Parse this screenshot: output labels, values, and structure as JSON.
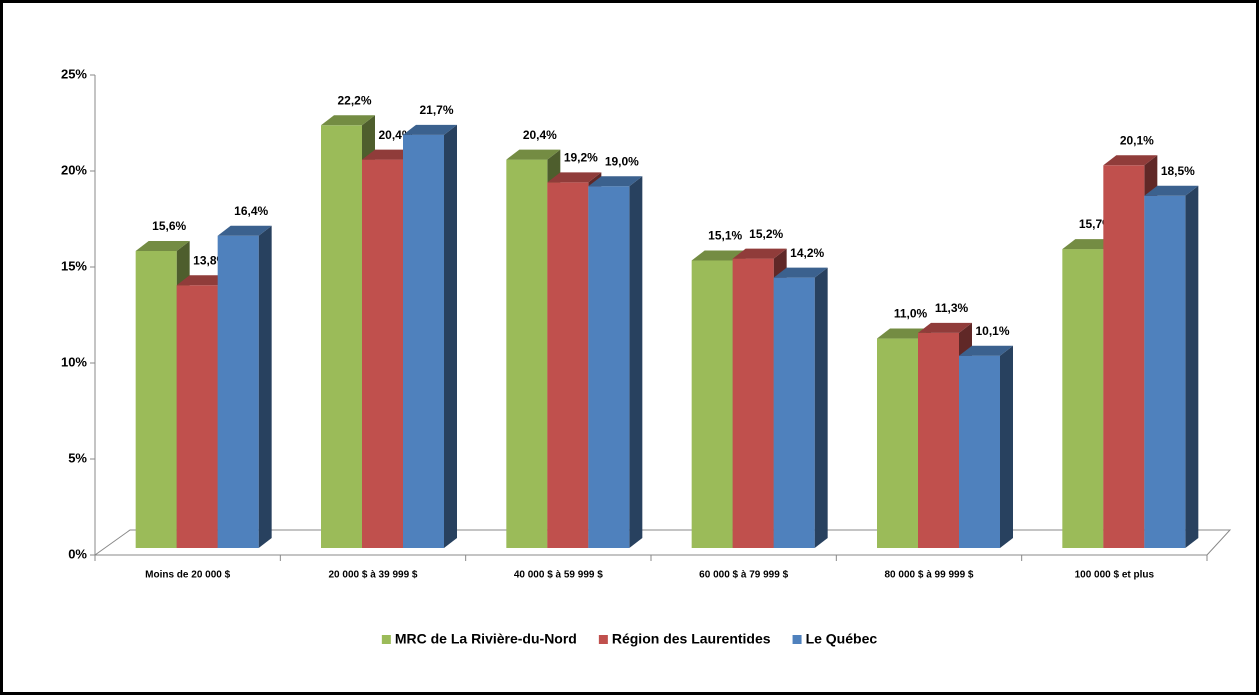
{
  "chart_data": {
    "type": "bar3d",
    "categories": [
      "Moins de 20 000 $",
      "20 000 $ à 39 999 $",
      "40 000 $ à 59 999 $",
      "60 000 $ à 79 999 $",
      "80 000 $ à 99 999 $",
      "100 000 $ et plus"
    ],
    "series": [
      {
        "name": "MRC de La Rivière-du-Nord",
        "color": "#9bbb59",
        "values": [
          15.6,
          22.2,
          20.4,
          15.1,
          11.0,
          15.7
        ],
        "value_labels": [
          "15,6%",
          "22,2%",
          "20,4%",
          "15,1%",
          "11,0%",
          "15,7%"
        ]
      },
      {
        "name": "Région des Laurentides",
        "color": "#c0504d",
        "values": [
          13.8,
          20.4,
          19.2,
          15.2,
          11.3,
          20.1
        ],
        "value_labels": [
          "13,8%",
          "20,4%",
          "19,2%",
          "15,2%",
          "11,3%",
          "20,1%"
        ]
      },
      {
        "name": "Le Québec",
        "color": "#4f81bd",
        "values": [
          16.4,
          21.7,
          19.0,
          14.2,
          10.1,
          18.5
        ],
        "value_labels": [
          "16,4%",
          "21,7%",
          "19,0%",
          "14,2%",
          "10,1%",
          "18,5%"
        ]
      }
    ],
    "ylim": [
      0,
      25
    ],
    "yticks": [
      {
        "value": 0,
        "label": "0%"
      },
      {
        "value": 5,
        "label": "5%"
      },
      {
        "value": 10,
        "label": "10%"
      },
      {
        "value": 15,
        "label": "15%"
      },
      {
        "value": 20,
        "label": "20%"
      },
      {
        "value": 25,
        "label": "25%"
      }
    ],
    "legend": "bottom"
  }
}
